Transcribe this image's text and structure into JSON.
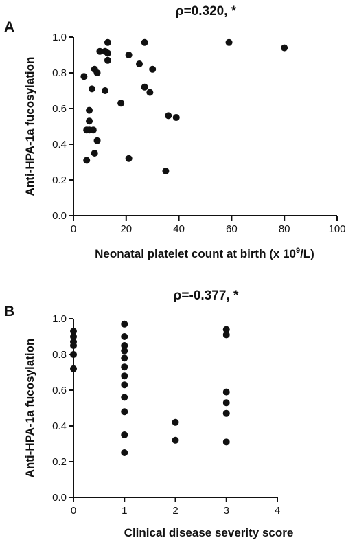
{
  "chart_data": [
    {
      "type": "scatter",
      "panel": "A",
      "title": "ρ=0.320, *",
      "xlabel": "Neonatal platelet count at birth (x 10",
      "xlabel_sup": "9",
      "xlabel_end": "/L)",
      "ylabel": "Anti-HPA-1a fucosylation",
      "xlim": [
        0,
        100
      ],
      "ylim": [
        0,
        1.0
      ],
      "xticks": [
        "0",
        "20",
        "40",
        "60",
        "80",
        "100"
      ],
      "yticks": [
        "0.0",
        "0.2",
        "0.4",
        "0.6",
        "0.8",
        "1.0"
      ],
      "grid": false,
      "points": [
        [
          4,
          0.78
        ],
        [
          5,
          0.48
        ],
        [
          5,
          0.31
        ],
        [
          6,
          0.59
        ],
        [
          6,
          0.53
        ],
        [
          6,
          0.48
        ],
        [
          7,
          0.71
        ],
        [
          7.5,
          0.48
        ],
        [
          8,
          0.82
        ],
        [
          8,
          0.35
        ],
        [
          9,
          0.8
        ],
        [
          9,
          0.42
        ],
        [
          10,
          0.92
        ],
        [
          12,
          0.7
        ],
        [
          12,
          0.92
        ],
        [
          13,
          0.97
        ],
        [
          13,
          0.91
        ],
        [
          13,
          0.87
        ],
        [
          18,
          0.63
        ],
        [
          21,
          0.9
        ],
        [
          21,
          0.32
        ],
        [
          25,
          0.85
        ],
        [
          27,
          0.97
        ],
        [
          27,
          0.72
        ],
        [
          29,
          0.69
        ],
        [
          30,
          0.82
        ],
        [
          35,
          0.25
        ],
        [
          36,
          0.56
        ],
        [
          39,
          0.55
        ],
        [
          59,
          0.97
        ],
        [
          80,
          0.94
        ]
      ]
    },
    {
      "type": "scatter",
      "panel": "B",
      "title": "ρ=-0.377, *",
      "xlabel": "Clinical disease severity score",
      "ylabel": "Anti-HPA-1a fucosylation",
      "xlim": [
        0,
        4
      ],
      "ylim": [
        0,
        1.0
      ],
      "xticks": [
        "0",
        "1",
        "2",
        "3",
        "4"
      ],
      "yticks": [
        "0.0",
        "0.2",
        "0.4",
        "0.6",
        "0.8",
        "1.0"
      ],
      "grid": false,
      "points": [
        [
          0,
          0.93
        ],
        [
          0,
          0.9
        ],
        [
          0,
          0.87
        ],
        [
          0,
          0.85
        ],
        [
          0,
          0.8
        ],
        [
          0,
          0.72
        ],
        [
          1,
          0.97
        ],
        [
          1,
          0.9
        ],
        [
          1,
          0.85
        ],
        [
          1,
          0.82
        ],
        [
          1,
          0.78
        ],
        [
          1,
          0.73
        ],
        [
          1,
          0.68
        ],
        [
          1,
          0.63
        ],
        [
          1,
          0.56
        ],
        [
          1,
          0.48
        ],
        [
          1,
          0.35
        ],
        [
          1,
          0.25
        ],
        [
          2,
          0.42
        ],
        [
          2,
          0.32
        ],
        [
          3,
          0.94
        ],
        [
          3,
          0.91
        ],
        [
          3,
          0.59
        ],
        [
          3,
          0.53
        ],
        [
          3,
          0.47
        ],
        [
          3,
          0.31
        ]
      ]
    }
  ]
}
